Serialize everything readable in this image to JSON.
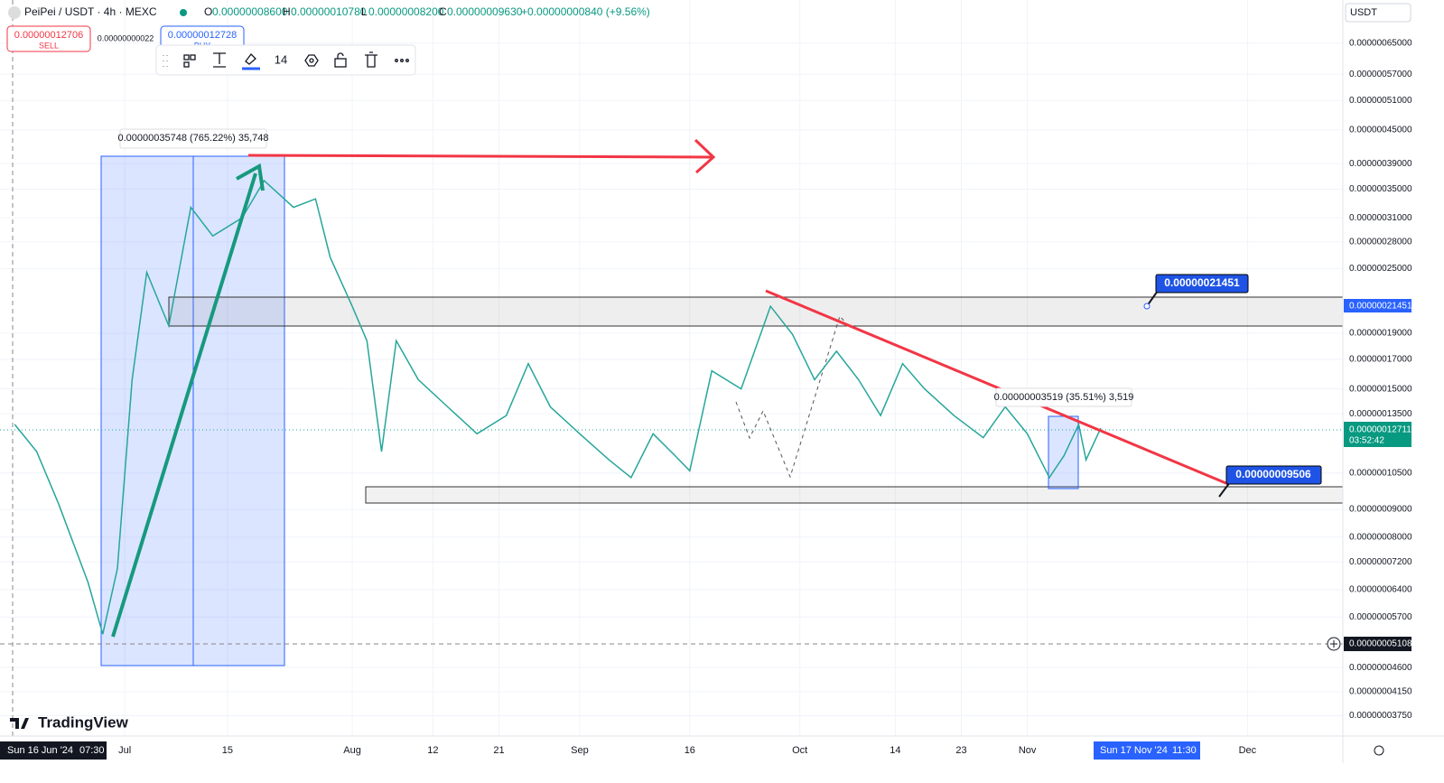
{
  "header": {
    "symbol": "PeiPei / USDT · 4h · MEXC",
    "o_label": "O",
    "open": "0.00000008600",
    "h_label": "H",
    "high": "0.00000010780",
    "l_label": "L",
    "low": "0.00000008200",
    "c_label": "C",
    "close": "0.00000009630",
    "change": "+0.00000000840 (+9.56%)"
  },
  "order_panel": {
    "sell_price": "0.00000012706",
    "sell": "SELL",
    "spread": "0.00000000022",
    "buy_price": "0.00000012728",
    "buy": "BUY"
  },
  "toolbar": {
    "font_size": "14"
  },
  "currency": "USDT",
  "annotations": {
    "measure_1": "0.00000035748 (765.22%) 35,748",
    "measure_2": "0.00000003519 (35.51%) 3,519",
    "callout_1": "0.00000021451",
    "callout_2": "0.00000009506"
  },
  "price_tags": {
    "zone_top": "0.00000021451",
    "last_price": "0.00000012711",
    "countdown": "03:52:42",
    "crosshair": "0.00000005108"
  },
  "time_tags": {
    "crosshair_date": "Sun 16 Jun '24",
    "crosshair_time": "07:30",
    "selected_date": "Sun 17 Nov '24",
    "selected_time": "11:30"
  },
  "logo": "TradingView",
  "chart_data": {
    "type": "line",
    "log_scale": true,
    "color": "#26a69a",
    "x": [
      "2024-06-16",
      "2024-06-19",
      "2024-06-22",
      "2024-06-26",
      "2024-06-28",
      "2024-06-30",
      "2024-07-02",
      "2024-07-04",
      "2024-07-07",
      "2024-07-10",
      "2024-07-13",
      "2024-07-17",
      "2024-07-20",
      "2024-07-24",
      "2024-07-27",
      "2024-07-29",
      "2024-08-01",
      "2024-08-03",
      "2024-08-05",
      "2024-08-07",
      "2024-08-10",
      "2024-08-14",
      "2024-08-18",
      "2024-08-22",
      "2024-08-25",
      "2024-08-28",
      "2024-09-01",
      "2024-09-05",
      "2024-09-08",
      "2024-09-11",
      "2024-09-14",
      "2024-09-16",
      "2024-09-19",
      "2024-09-23",
      "2024-09-27",
      "2024-09-30",
      "2024-10-03",
      "2024-10-06",
      "2024-10-09",
      "2024-10-12",
      "2024-10-15",
      "2024-10-18",
      "2024-10-22",
      "2024-10-26",
      "2024-10-29",
      "2024-11-01",
      "2024-11-04",
      "2024-11-06",
      "2024-11-08",
      "2024-11-09",
      "2024-11-11"
    ],
    "values": [
      1.29e-07,
      1.15e-07,
      9.2e-08,
      6.6e-08,
      5.3e-08,
      7e-08,
      1.56e-07,
      2.46e-07,
      1.96e-07,
      3.24e-07,
      2.87e-07,
      3.1e-07,
      3.63e-07,
      3.24e-07,
      3.36e-07,
      2.62e-07,
      2.13e-07,
      1.84e-07,
      1.15e-07,
      1.84e-07,
      1.56e-07,
      1.39e-07,
      1.24e-07,
      1.34e-07,
      1.67e-07,
      1.39e-07,
      1.24e-07,
      1.11e-07,
      1.03e-07,
      1.24e-07,
      1.13e-07,
      1.06e-07,
      1.62e-07,
      1.5e-07,
      2.13e-07,
      1.89e-07,
      1.56e-07,
      1.76e-07,
      1.56e-07,
      1.34e-07,
      1.67e-07,
      1.5e-07,
      1.34e-07,
      1.22e-07,
      1.39e-07,
      1.24e-07,
      1.03e-07,
      1.13e-07,
      1.29e-07,
      1.11e-07,
      1.27e-07
    ],
    "xlim": [
      "2024-06-14",
      "2024-12-14"
    ],
    "xticks": [
      {
        "value": "2024-07-01",
        "label": "Jul"
      },
      {
        "value": "2024-07-15",
        "label": "15"
      },
      {
        "value": "2024-08-01",
        "label": "Aug"
      },
      {
        "value": "2024-08-12",
        "label": "12"
      },
      {
        "value": "2024-08-21",
        "label": "21"
      },
      {
        "value": "2024-09-01",
        "label": "Sep"
      },
      {
        "value": "2024-09-16",
        "label": "16"
      },
      {
        "value": "2024-10-01",
        "label": "Oct"
      },
      {
        "value": "2024-10-14",
        "label": "14"
      },
      {
        "value": "2024-10-23",
        "label": "23"
      },
      {
        "value": "2024-11-01",
        "label": "Nov"
      },
      {
        "value": "2024-12-01",
        "label": "Dec"
      }
    ],
    "ylim": [
      3.44e-08,
      7.81e-07
    ],
    "yticks": [
      {
        "value": 6.5e-07,
        "label": "0.00000065000"
      },
      {
        "value": 5.7e-07,
        "label": "0.00000057000"
      },
      {
        "value": 5.1e-07,
        "label": "0.00000051000"
      },
      {
        "value": 4.5e-07,
        "label": "0.00000045000"
      },
      {
        "value": 3.9e-07,
        "label": "0.00000039000"
      },
      {
        "value": 3.5e-07,
        "label": "0.00000035000"
      },
      {
        "value": 3.1e-07,
        "label": "0.00000031000"
      },
      {
        "value": 2.8e-07,
        "label": "0.00000028000"
      },
      {
        "value": 2.5e-07,
        "label": "0.00000025000"
      },
      {
        "value": 1.9e-07,
        "label": "0.00000019000"
      },
      {
        "value": 1.7e-07,
        "label": "0.00000017000"
      },
      {
        "value": 1.5e-07,
        "label": "0.00000015000"
      },
      {
        "value": 1.35e-07,
        "label": "0.00000013500"
      },
      {
        "value": 1.05e-07,
        "label": "0.00000010500"
      },
      {
        "value": 9e-08,
        "label": "0.00000009000"
      },
      {
        "value": 8e-08,
        "label": "0.00000008000"
      },
      {
        "value": 7.2e-08,
        "label": "0.00000007200"
      },
      {
        "value": 6.4e-08,
        "label": "0.00000006400"
      },
      {
        "value": 5.7e-08,
        "label": "0.00000005700"
      },
      {
        "value": 4.6e-08,
        "label": "0.00000004600"
      },
      {
        "value": 4.15e-08,
        "label": "0.00000004150"
      },
      {
        "value": 3.75e-08,
        "label": "0.00000003750"
      }
    ],
    "grid": true
  }
}
